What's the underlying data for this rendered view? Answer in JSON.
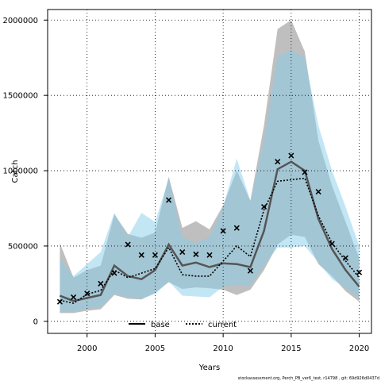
{
  "chart_data": {
    "type": "line",
    "xlabel": "Years",
    "ylabel": "Catch",
    "xlim": [
      1997.1,
      2020.9
    ],
    "ylim": [
      -80000,
      2070000
    ],
    "x_ticks": [
      2000,
      2005,
      2010,
      2015,
      2020
    ],
    "x_tick_labels": [
      "2000",
      "2005",
      "2010",
      "2015",
      "2020"
    ],
    "y_ticks": [
      0,
      500000,
      1000000,
      1500000,
      2000000
    ],
    "y_tick_labels": [
      "0",
      "500000",
      "1000000",
      "1500000",
      "2000000"
    ],
    "grid": true,
    "legend_position": "bottom",
    "x": [
      1998,
      1999,
      2000,
      2001,
      2002,
      2003,
      2004,
      2005,
      2006,
      2007,
      2008,
      2009,
      2010,
      2011,
      2012,
      2013,
      2014,
      2015,
      2016,
      2017,
      2018,
      2019,
      2020
    ],
    "series": [
      {
        "name": "base",
        "style": "solid",
        "color": "#555555",
        "band_color": "#808080",
        "values": [
          170000,
          135000,
          155000,
          175000,
          370000,
          300000,
          280000,
          340000,
          510000,
          370000,
          390000,
          360000,
          385000,
          380000,
          360000,
          600000,
          1010000,
          1060000,
          1000000,
          680000,
          480000,
          340000,
          230000
        ],
        "lower": [
          55000,
          55000,
          70000,
          80000,
          175000,
          150000,
          145000,
          190000,
          260000,
          215000,
          225000,
          220000,
          210000,
          175000,
          210000,
          340000,
          510000,
          575000,
          560000,
          380000,
          300000,
          200000,
          130000
        ],
        "upper": [
          520000,
          290000,
          340000,
          370000,
          710000,
          580000,
          555000,
          590000,
          960000,
          620000,
          665000,
          610000,
          770000,
          1000000,
          800000,
          1300000,
          1940000,
          2000000,
          1790000,
          1200000,
          900000,
          660000,
          420000
        ]
      },
      {
        "name": "current",
        "style": "dotted",
        "color": "#000000",
        "band_color": "#87CEEB",
        "values": [
          140000,
          120000,
          180000,
          205000,
          340000,
          290000,
          320000,
          350000,
          490000,
          310000,
          300000,
          300000,
          400000,
          500000,
          430000,
          740000,
          930000,
          940000,
          950000,
          700000,
          520000,
          400000,
          290000
        ],
        "lower": [
          60000,
          65000,
          85000,
          95000,
          185000,
          160000,
          150000,
          180000,
          265000,
          170000,
          165000,
          160000,
          230000,
          240000,
          240000,
          370000,
          490000,
          490000,
          500000,
          390000,
          280000,
          220000,
          160000
        ],
        "upper": [
          420000,
          300000,
          380000,
          460000,
          720000,
          560000,
          720000,
          660000,
          950000,
          560000,
          520000,
          560000,
          760000,
          1080000,
          800000,
          1200000,
          1760000,
          1800000,
          1750000,
          1300000,
          1000000,
          760000,
          500000
        ]
      }
    ],
    "observed": {
      "marker": "x",
      "values": [
        130000,
        160000,
        185000,
        250000,
        320000,
        510000,
        440000,
        440000,
        805000,
        460000,
        445000,
        440000,
        600000,
        620000,
        335000,
        760000,
        1060000,
        1100000,
        990000,
        860000,
        515000,
        420000,
        325000
      ]
    },
    "footer": "stockassessment.org, Perch_PB_ver6_test, r14798 , git: 69d926d0437d"
  }
}
